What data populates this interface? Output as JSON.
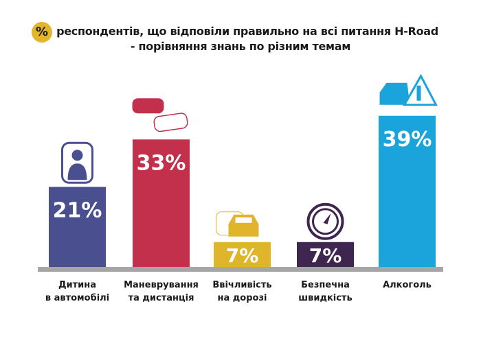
{
  "chart_data": {
    "type": "bar",
    "title_badge": "%",
    "title": "респондентів, що відповіли правильно на всі питання H-Road",
    "subtitle": "- порівняння знань по різним темам",
    "categories": [
      [
        "Дитина",
        "в автомобілі"
      ],
      [
        "Маневрування",
        "та дистанція"
      ],
      [
        "Ввічливість",
        "на дорозі"
      ],
      [
        "Безпечна",
        "швидкість"
      ],
      [
        "Алкоголь"
      ]
    ],
    "values": [
      21,
      33,
      7,
      7,
      39
    ],
    "value_labels": [
      "21%",
      "33%",
      "7%",
      "7%",
      "39%"
    ],
    "icons": [
      "child-car-seat-icon",
      "two-cars-icon",
      "cars-icon",
      "speedometer-icon",
      "car-alcohol-warning-icon"
    ],
    "colors": [
      "#4a4f8f",
      "#c3304b",
      "#e0b52c",
      "#3e2650",
      "#1ba3dc"
    ],
    "axis_color": "#a6a6a6",
    "grid": false,
    "ylim": [
      0,
      40
    ]
  }
}
